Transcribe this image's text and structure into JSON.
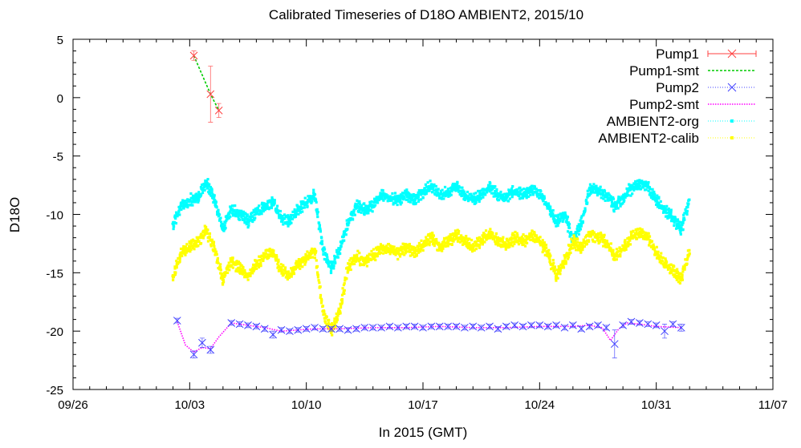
{
  "chart_data": {
    "type": "scatter",
    "title": "Calibrated Timeseries of D18O AMBIENT2, 2015/10",
    "xlabel": "In 2015 (GMT)",
    "ylabel": "D18O",
    "xlim": [
      "2015-09-26",
      "2015-11-07"
    ],
    "ylim": [
      -25,
      5
    ],
    "x_ticks": [
      "09/26",
      "10/03",
      "10/10",
      "10/17",
      "10/24",
      "10/31",
      "11/07"
    ],
    "y_ticks": [
      5,
      0,
      -5,
      -10,
      -15,
      -20,
      -25
    ],
    "grid": false,
    "legend_position": "top-right",
    "series": [
      {
        "name": "Pump1",
        "color": "#ff4040",
        "style": "points-errorbars",
        "marker": "x",
        "x": [
          "2015-10-03T06:00",
          "2015-10-04T06:00",
          "2015-10-04T18:00"
        ],
        "y": [
          3.6,
          0.3,
          -1.1
        ],
        "err": [
          0.4,
          2.4,
          0.6
        ]
      },
      {
        "name": "Pump1-smt",
        "color": "#00cc00",
        "style": "dashed-line",
        "x": [
          "2015-10-03T06:00",
          "2015-10-04T06:00",
          "2015-10-04T18:00"
        ],
        "y": [
          3.6,
          0.3,
          -1.1
        ]
      },
      {
        "name": "Pump2",
        "color": "#4040ff",
        "style": "points",
        "marker": "x",
        "x": [
          "2015-10-02T06:00",
          "2015-10-03T06:00",
          "2015-10-03T18:00",
          "2015-10-04T06:00",
          "2015-10-05T12:00",
          "2015-10-06T00:00",
          "2015-10-06T12:00",
          "2015-10-07T00:00",
          "2015-10-07T12:00",
          "2015-10-08T00:00",
          "2015-10-08T12:00",
          "2015-10-09T00:00",
          "2015-10-09T12:00",
          "2015-10-10T00:00",
          "2015-10-10T12:00",
          "2015-10-11T00:00",
          "2015-10-11T12:00",
          "2015-10-12T00:00",
          "2015-10-12T12:00",
          "2015-10-13T00:00",
          "2015-10-13T12:00",
          "2015-10-14T00:00",
          "2015-10-14T12:00",
          "2015-10-15T00:00",
          "2015-10-15T12:00",
          "2015-10-16T00:00",
          "2015-10-16T12:00",
          "2015-10-17T00:00",
          "2015-10-17T12:00",
          "2015-10-18T00:00",
          "2015-10-18T12:00",
          "2015-10-19T00:00",
          "2015-10-19T12:00",
          "2015-10-20T00:00",
          "2015-10-20T12:00",
          "2015-10-21T00:00",
          "2015-10-21T12:00",
          "2015-10-22T00:00",
          "2015-10-22T12:00",
          "2015-10-23T00:00",
          "2015-10-23T12:00",
          "2015-10-24T00:00",
          "2015-10-24T12:00",
          "2015-10-25T00:00",
          "2015-10-25T12:00",
          "2015-10-26T00:00",
          "2015-10-26T12:00",
          "2015-10-27T00:00",
          "2015-10-27T12:00",
          "2015-10-28T00:00",
          "2015-10-28T12:00",
          "2015-10-29T00:00",
          "2015-10-29T12:00",
          "2015-10-30T00:00",
          "2015-10-30T12:00",
          "2015-10-31T00:00",
          "2015-10-31T12:00",
          "2015-11-01T00:00",
          "2015-11-01T12:00"
        ],
        "y": [
          -19.1,
          -22.0,
          -21.0,
          -21.6,
          -19.3,
          -19.4,
          -19.5,
          -19.6,
          -19.8,
          -20.3,
          -19.9,
          -20.0,
          -19.9,
          -19.8,
          -19.7,
          -19.8,
          -19.8,
          -19.8,
          -19.9,
          -19.8,
          -19.7,
          -19.7,
          -19.7,
          -19.6,
          -19.7,
          -19.6,
          -19.6,
          -19.7,
          -19.6,
          -19.6,
          -19.6,
          -19.6,
          -19.7,
          -19.6,
          -19.7,
          -19.6,
          -19.8,
          -19.6,
          -19.5,
          -19.6,
          -19.5,
          -19.5,
          -19.6,
          -19.5,
          -19.7,
          -19.5,
          -19.8,
          -19.6,
          -19.5,
          -19.7,
          -21.1,
          -19.5,
          -19.2,
          -19.3,
          -19.4,
          -19.5,
          -20.0,
          -19.4,
          -19.7
        ],
        "err": [
          0.2,
          0.3,
          0.4,
          0.3,
          0.2,
          0.2,
          0.2,
          0.2,
          0.2,
          0.3,
          0.2,
          0.2,
          0.2,
          0.2,
          0.2,
          0.2,
          0.2,
          0.2,
          0.2,
          0.2,
          0.2,
          0.2,
          0.2,
          0.2,
          0.2,
          0.2,
          0.2,
          0.2,
          0.2,
          0.2,
          0.2,
          0.2,
          0.2,
          0.2,
          0.2,
          0.2,
          0.2,
          0.2,
          0.2,
          0.2,
          0.2,
          0.2,
          0.2,
          0.2,
          0.2,
          0.2,
          0.2,
          0.2,
          0.2,
          0.2,
          1.2,
          0.2,
          0.2,
          0.2,
          0.2,
          0.2,
          0.6,
          0.2,
          0.3
        ]
      },
      {
        "name": "Pump2-smt",
        "color": "#ff00ff",
        "style": "dotted-line",
        "x": [
          "2015-10-02T06:00",
          "2015-10-02T18:00",
          "2015-10-03T06:00",
          "2015-10-03T18:00",
          "2015-10-04T06:00",
          "2015-10-04T18:00",
          "2015-10-05T12:00",
          "2015-10-06T12:00",
          "2015-10-07T12:00",
          "2015-10-08T12:00",
          "2015-10-09T12:00",
          "2015-10-10T12:00",
          "2015-10-12T00:00",
          "2015-10-14T00:00",
          "2015-10-16T00:00",
          "2015-10-18T00:00",
          "2015-10-20T00:00",
          "2015-10-22T00:00",
          "2015-10-24T00:00",
          "2015-10-26T00:00",
          "2015-10-27T00:00",
          "2015-10-27T18:00",
          "2015-10-28T06:00",
          "2015-10-28T18:00",
          "2015-10-29T06:00",
          "2015-10-30T00:00",
          "2015-10-31T00:00",
          "2015-11-01T12:00"
        ],
        "y": [
          -19.2,
          -21.2,
          -21.8,
          -21.4,
          -21.5,
          -20.5,
          -19.3,
          -19.5,
          -19.7,
          -20.0,
          -19.9,
          -19.8,
          -19.8,
          -19.7,
          -19.7,
          -19.6,
          -19.7,
          -19.7,
          -19.6,
          -19.6,
          -19.5,
          -19.7,
          -20.8,
          -19.8,
          -19.3,
          -19.4,
          -19.6,
          -19.7
        ]
      },
      {
        "name": "AMBIENT2-org",
        "color": "#00ffff",
        "style": "dense-points",
        "x": [
          "2015-10-02T00:00",
          "2015-10-02T12:00",
          "2015-10-03T00:00",
          "2015-10-03T12:00",
          "2015-10-04T00:00",
          "2015-10-04T12:00",
          "2015-10-05T00:00",
          "2015-10-05T12:00",
          "2015-10-06T00:00",
          "2015-10-06T12:00",
          "2015-10-07T00:00",
          "2015-10-07T12:00",
          "2015-10-08T00:00",
          "2015-10-08T12:00",
          "2015-10-09T00:00",
          "2015-10-09T12:00",
          "2015-10-10T00:00",
          "2015-10-10T12:00",
          "2015-10-11T00:00",
          "2015-10-11T12:00",
          "2015-10-12T00:00",
          "2015-10-12T12:00",
          "2015-10-13T00:00",
          "2015-10-13T12:00",
          "2015-10-14T00:00",
          "2015-10-14T12:00",
          "2015-10-15T00:00",
          "2015-10-15T12:00",
          "2015-10-16T00:00",
          "2015-10-16T12:00",
          "2015-10-17T00:00",
          "2015-10-17T12:00",
          "2015-10-18T00:00",
          "2015-10-18T12:00",
          "2015-10-19T00:00",
          "2015-10-19T12:00",
          "2015-10-20T00:00",
          "2015-10-20T12:00",
          "2015-10-21T00:00",
          "2015-10-21T12:00",
          "2015-10-22T00:00",
          "2015-10-22T12:00",
          "2015-10-23T00:00",
          "2015-10-23T12:00",
          "2015-10-24T00:00",
          "2015-10-24T12:00",
          "2015-10-25T00:00",
          "2015-10-25T12:00",
          "2015-10-26T00:00",
          "2015-10-26T12:00",
          "2015-10-27T00:00",
          "2015-10-27T12:00",
          "2015-10-28T00:00",
          "2015-10-28T12:00",
          "2015-10-29T00:00",
          "2015-10-29T12:00",
          "2015-10-30T00:00",
          "2015-10-30T12:00",
          "2015-10-31T00:00",
          "2015-10-31T12:00",
          "2015-11-01T00:00",
          "2015-11-01T12:00",
          "2015-11-02T00:00"
        ],
        "y": [
          -10.8,
          -9.3,
          -8.8,
          -8.6,
          -7.2,
          -8.8,
          -11.3,
          -9.6,
          -10.0,
          -10.6,
          -9.8,
          -9.3,
          -9.0,
          -10.3,
          -10.6,
          -9.6,
          -9.0,
          -8.3,
          -13.0,
          -14.6,
          -13.0,
          -10.8,
          -9.3,
          -9.6,
          -9.3,
          -8.3,
          -8.6,
          -8.8,
          -8.3,
          -8.8,
          -8.1,
          -7.6,
          -8.3,
          -8.1,
          -7.6,
          -8.3,
          -8.8,
          -8.3,
          -7.6,
          -8.3,
          -8.6,
          -8.0,
          -8.3,
          -7.8,
          -8.3,
          -9.3,
          -10.6,
          -10.0,
          -12.2,
          -10.8,
          -7.8,
          -8.0,
          -8.3,
          -9.3,
          -8.6,
          -7.8,
          -7.3,
          -7.6,
          -8.8,
          -9.6,
          -10.3,
          -11.3,
          -8.6
        ]
      },
      {
        "name": "AMBIENT2-calib",
        "color": "#ffff00",
        "style": "dense-points",
        "x": [
          "2015-10-02T00:00",
          "2015-10-02T12:00",
          "2015-10-03T00:00",
          "2015-10-03T12:00",
          "2015-10-04T00:00",
          "2015-10-04T12:00",
          "2015-10-05T00:00",
          "2015-10-05T12:00",
          "2015-10-06T00:00",
          "2015-10-06T12:00",
          "2015-10-07T00:00",
          "2015-10-07T12:00",
          "2015-10-08T00:00",
          "2015-10-08T12:00",
          "2015-10-09T00:00",
          "2015-10-09T12:00",
          "2015-10-10T00:00",
          "2015-10-10T12:00",
          "2015-10-11T00:00",
          "2015-10-11T12:00",
          "2015-10-12T00:00",
          "2015-10-12T12:00",
          "2015-10-13T00:00",
          "2015-10-13T12:00",
          "2015-10-14T00:00",
          "2015-10-14T12:00",
          "2015-10-15T00:00",
          "2015-10-15T12:00",
          "2015-10-16T00:00",
          "2015-10-16T12:00",
          "2015-10-17T00:00",
          "2015-10-17T12:00",
          "2015-10-18T00:00",
          "2015-10-18T12:00",
          "2015-10-19T00:00",
          "2015-10-19T12:00",
          "2015-10-20T00:00",
          "2015-10-20T12:00",
          "2015-10-21T00:00",
          "2015-10-21T12:00",
          "2015-10-22T00:00",
          "2015-10-22T12:00",
          "2015-10-23T00:00",
          "2015-10-23T12:00",
          "2015-10-24T00:00",
          "2015-10-24T12:00",
          "2015-10-25T00:00",
          "2015-10-25T12:00",
          "2015-10-26T00:00",
          "2015-10-26T12:00",
          "2015-10-27T00:00",
          "2015-10-27T12:00",
          "2015-10-28T00:00",
          "2015-10-28T12:00",
          "2015-10-29T00:00",
          "2015-10-29T12:00",
          "2015-10-30T00:00",
          "2015-10-30T12:00",
          "2015-10-31T00:00",
          "2015-10-31T12:00",
          "2015-11-01T00:00",
          "2015-11-01T12:00",
          "2015-11-02T00:00"
        ],
        "y": [
          -15.3,
          -13.3,
          -12.8,
          -12.3,
          -11.3,
          -13.0,
          -15.6,
          -14.0,
          -14.6,
          -15.3,
          -14.3,
          -13.6,
          -13.3,
          -14.8,
          -15.3,
          -14.3,
          -13.8,
          -13.0,
          -18.3,
          -20.0,
          -18.3,
          -14.6,
          -13.6,
          -14.0,
          -13.6,
          -12.8,
          -13.0,
          -13.3,
          -12.8,
          -13.3,
          -12.6,
          -12.0,
          -12.8,
          -12.3,
          -11.8,
          -12.3,
          -12.8,
          -12.3,
          -11.6,
          -12.3,
          -12.6,
          -12.0,
          -12.3,
          -11.8,
          -12.3,
          -13.3,
          -15.3,
          -14.0,
          -12.3,
          -12.8,
          -11.8,
          -12.0,
          -12.3,
          -13.6,
          -13.0,
          -12.0,
          -11.6,
          -12.0,
          -13.3,
          -14.3,
          -14.8,
          -15.6,
          -13.0
        ]
      }
    ]
  }
}
